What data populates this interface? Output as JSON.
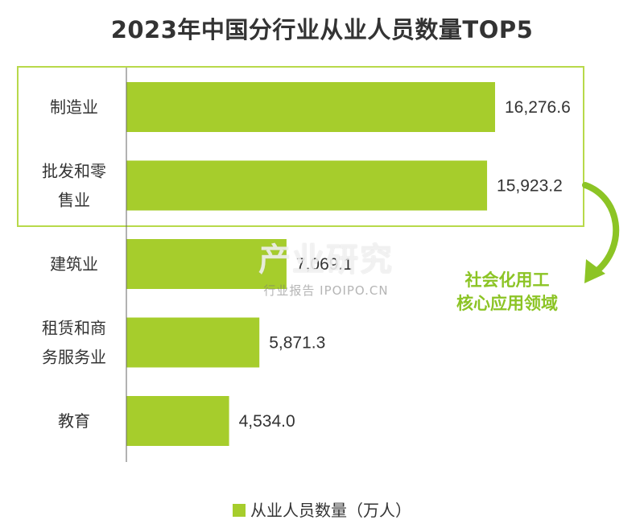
{
  "chart_data": {
    "type": "bar",
    "orientation": "horizontal",
    "title": "2023年中国分行业从业人员数量TOP5",
    "categories": [
      [
        "制造业"
      ],
      [
        "批发和零",
        "售业"
      ],
      [
        "建筑业"
      ],
      [
        "租赁和商",
        "务服务业"
      ],
      [
        "教育"
      ]
    ],
    "series": [
      {
        "name": "从业人员数量（万人）",
        "values": [
          16276.6,
          15923.2,
          7069.1,
          5871.3,
          4534.0
        ]
      }
    ],
    "value_labels": [
      "16,276.6",
      "15,923.2",
      "7,069.1",
      "5,871.3",
      "4,534.0"
    ],
    "xlim": [
      0,
      18000
    ],
    "grid": false,
    "legend_position": "bottom",
    "annotation": {
      "lines": [
        "社会化用工",
        "核心应用领域"
      ]
    },
    "highlight_box_categories": [
      0,
      1
    ]
  },
  "colors": {
    "bar": "#a6cd2c",
    "highlight_box": "#b8d94a",
    "arrow": "#8cc425",
    "annotation_text": "#8cc425"
  },
  "watermark": {
    "main": "产业研究",
    "sub": "行业报告 IPOIPO.CN"
  }
}
